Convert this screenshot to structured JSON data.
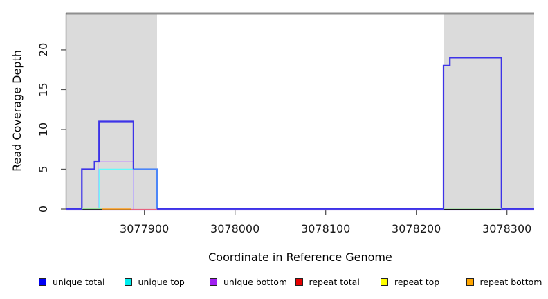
{
  "chart_data": {
    "type": "line",
    "subtype": "step-coverage",
    "title": "",
    "xlabel": "Coordinate in Reference Genome",
    "ylabel": "Read Coverage Depth",
    "xlim": [
      3077814,
      3078330
    ],
    "ylim": [
      0,
      24.6
    ],
    "x_ticks": [
      3077900,
      3078000,
      3078100,
      3078200,
      3078300
    ],
    "y_ticks": [
      0,
      5,
      10,
      15,
      20
    ],
    "grid": false,
    "legend_position": "bottom",
    "colors": {
      "plot_background": "#ffffff",
      "region_fill": "#dbdbdb",
      "top_border": "#8f8f8f",
      "axis": "#000000",
      "tick": "#555555",
      "tick_label": "#1a1a1a"
    },
    "background_regions": [
      {
        "name": "shaded-region-left",
        "x0": 3077814,
        "x1": 3077914
      },
      {
        "name": "shaded-region-right",
        "x0": 3078230,
        "x1": 3078330
      }
    ],
    "series": [
      {
        "name": "unique top",
        "color": "#63fbfb",
        "width": 1.4,
        "dy": 0,
        "points": [
          [
            3077850,
            0
          ],
          [
            3077850,
            5
          ],
          [
            3077888,
            5
          ],
          [
            3077888,
            0
          ]
        ]
      },
      {
        "name": "unique bottom",
        "color": "#cba6f5",
        "width": 1.4,
        "dy": 0,
        "points": [
          [
            3077849,
            0
          ],
          [
            3077849,
            6
          ],
          [
            3077888,
            6
          ],
          [
            3077888,
            0
          ]
        ]
      },
      {
        "name": "unique total left hump",
        "color": "#3d33e8",
        "width": 2.2,
        "dy": 0,
        "points": [
          [
            3077814,
            0
          ],
          [
            3077831,
            0
          ],
          [
            3077831,
            5
          ],
          [
            3077845,
            5
          ],
          [
            3077845,
            6
          ],
          [
            3077850,
            6
          ],
          [
            3077850,
            11
          ],
          [
            3077888,
            11
          ],
          [
            3077888,
            5
          ]
        ]
      },
      {
        "name": "unique total mid plateau",
        "color": "#4c86f8",
        "width": 2.2,
        "dy": 0,
        "points": [
          [
            3077888,
            5
          ],
          [
            3077914,
            5
          ],
          [
            3077914,
            0
          ]
        ]
      },
      {
        "name": "unique total right block",
        "color": "#3d33e8",
        "width": 2.2,
        "dy": 0,
        "points": [
          [
            3077914,
            0
          ],
          [
            3078230,
            0
          ],
          [
            3078230,
            18
          ],
          [
            3078237,
            18
          ],
          [
            3078237,
            19
          ],
          [
            3078294,
            19
          ],
          [
            3078294,
            0
          ],
          [
            3078330,
            0
          ]
        ]
      },
      {
        "name": "unique bottom baseline",
        "color": "#ae8eeb",
        "width": 1.2,
        "dy": 1.5,
        "points": [
          [
            3077814,
            0
          ],
          [
            3078330,
            0
          ]
        ]
      },
      {
        "name": "baseline green left",
        "color": "#96de96",
        "width": 1.2,
        "dy": -0.5,
        "points": [
          [
            3077831,
            0
          ],
          [
            3077853,
            0
          ]
        ]
      },
      {
        "name": "baseline green right",
        "color": "#96de96",
        "width": 1.2,
        "dy": -1,
        "points": [
          [
            3078230,
            0
          ],
          [
            3078294,
            0
          ]
        ]
      },
      {
        "name": "baseline orange",
        "color": "#ff9e1b",
        "width": 1.6,
        "dy": 0,
        "points": [
          [
            3077853,
            0
          ],
          [
            3077885,
            0
          ]
        ]
      },
      {
        "name": "baseline pink",
        "color": "#e8627f",
        "width": 1.3,
        "dy": 0.5,
        "points": [
          [
            3077885,
            0
          ],
          [
            3077914,
            0
          ]
        ]
      }
    ],
    "legend": [
      {
        "label": "unique total",
        "color": "#0000f5"
      },
      {
        "label": "unique top",
        "color": "#00eeee"
      },
      {
        "label": "unique bottom",
        "color": "#a020f0"
      },
      {
        "label": "repeat total",
        "color": "#e60000"
      },
      {
        "label": "repeat top",
        "color": "#ffff00"
      },
      {
        "label": "repeat bottom",
        "color": "#ffa500"
      }
    ]
  }
}
